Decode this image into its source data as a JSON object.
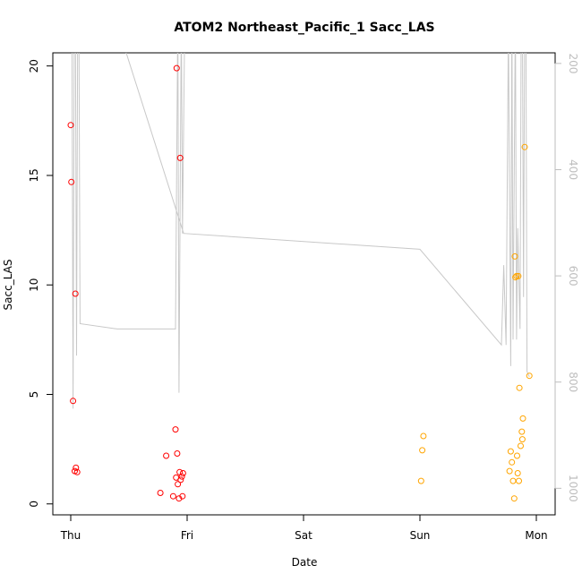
{
  "chart_data": {
    "type": "scatter",
    "title": "ATOM2 Northeast_Pacific_1 Sacc_LAS",
    "xlabel": "Date",
    "ylabel": "Sacc_LAS",
    "x_ticks": [
      "Thu",
      "Fri",
      "Sat",
      "Sun",
      "Mon"
    ],
    "y_ticks": [
      "0",
      "5",
      "10",
      "15",
      "20"
    ],
    "ylim": [
      -0.5,
      20.6
    ],
    "right_axis": {
      "ticks": [
        "200",
        "400",
        "600",
        "800",
        "1000"
      ],
      "range": [
        180,
        1050
      ],
      "inverted": true,
      "color": "#bebebe"
    },
    "grid": false,
    "x_unit": "days from Thu 00:00",
    "series": [
      {
        "color": "#ff0000",
        "points": [
          [
            0.0,
            17.3
          ],
          [
            0.005,
            14.7
          ],
          [
            0.02,
            4.7
          ],
          [
            0.04,
            9.6
          ],
          [
            0.035,
            1.5
          ],
          [
            0.045,
            1.65
          ],
          [
            0.055,
            1.45
          ],
          [
            0.77,
            0.5
          ],
          [
            0.82,
            2.2
          ],
          [
            0.88,
            0.35
          ],
          [
            0.9,
            3.4
          ],
          [
            0.905,
            1.2
          ],
          [
            0.91,
            19.9
          ],
          [
            0.915,
            2.3
          ],
          [
            0.92,
            0.9
          ],
          [
            0.93,
            0.25
          ],
          [
            0.935,
            1.45
          ],
          [
            0.94,
            15.8
          ],
          [
            0.945,
            1.1
          ],
          [
            0.955,
            1.25
          ],
          [
            0.96,
            0.35
          ],
          [
            0.965,
            1.4
          ]
        ]
      },
      {
        "color": "#ffa500",
        "points": [
          [
            3.01,
            1.05
          ],
          [
            3.02,
            2.45
          ],
          [
            3.03,
            3.1
          ],
          [
            3.77,
            1.5
          ],
          [
            3.78,
            2.4
          ],
          [
            3.79,
            1.9
          ],
          [
            3.8,
            1.05
          ],
          [
            3.81,
            0.25
          ],
          [
            3.815,
            11.3
          ],
          [
            3.82,
            10.35
          ],
          [
            3.83,
            10.4
          ],
          [
            3.835,
            2.2
          ],
          [
            3.84,
            1.4
          ],
          [
            3.845,
            10.4
          ],
          [
            3.85,
            1.05
          ],
          [
            3.855,
            5.3
          ],
          [
            3.865,
            2.65
          ],
          [
            3.875,
            3.3
          ],
          [
            3.88,
            2.95
          ],
          [
            3.885,
            3.9
          ],
          [
            3.9,
            16.3
          ],
          [
            3.94,
            5.85
          ]
        ]
      }
    ],
    "depth_line": {
      "color": "#c8c8c8",
      "points": [
        [
          0.0,
          100
        ],
        [
          0.01,
          100
        ],
        [
          0.02,
          850
        ],
        [
          0.03,
          100
        ],
        [
          0.04,
          100
        ],
        [
          0.05,
          750
        ],
        [
          0.06,
          100
        ],
        [
          0.07,
          100
        ],
        [
          0.08,
          690
        ],
        [
          0.4,
          700
        ],
        [
          0.9,
          700
        ],
        [
          0.92,
          105
        ],
        [
          0.93,
          820
        ],
        [
          0.95,
          105
        ],
        [
          0.96,
          520
        ],
        [
          0.98,
          110
        ],
        [
          0.22,
          110
        ],
        [
          0.23,
          10
        ],
        [
          0.97,
          520
        ],
        [
          3.0,
          550
        ],
        [
          3.7,
          730
        ],
        [
          3.72,
          580
        ],
        [
          3.74,
          730
        ],
        [
          3.76,
          130
        ],
        [
          3.78,
          770
        ],
        [
          3.79,
          100
        ],
        [
          3.8,
          720
        ],
        [
          3.82,
          100
        ],
        [
          3.83,
          720
        ],
        [
          3.84,
          510
        ],
        [
          3.86,
          700
        ],
        [
          3.87,
          100
        ],
        [
          3.88,
          100
        ],
        [
          3.89,
          640
        ],
        [
          3.9,
          100
        ],
        [
          3.91,
          100
        ],
        [
          3.92,
          780
        ],
        [
          3.94,
          790
        ]
      ]
    }
  }
}
